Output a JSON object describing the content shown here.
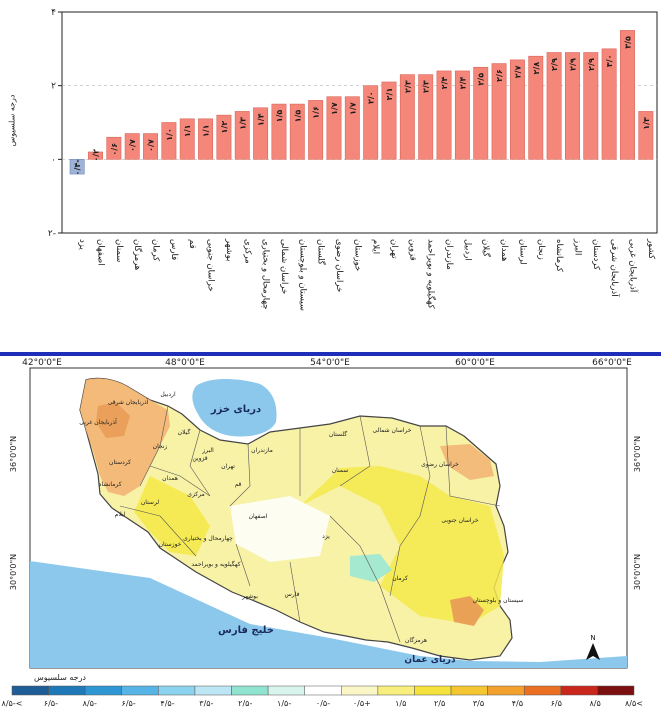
{
  "chart_data": {
    "type": "bar",
    "ylabel": "درجه سلسیوس",
    "ylim": [
      -2,
      4
    ],
    "yticks": [
      -2,
      0,
      2,
      4
    ],
    "ytick_labels": [
      "۲-",
      "۰",
      "۲",
      "۴"
    ],
    "categories": [
      "یزد",
      "اصفهان",
      "سمنان",
      "هرمزگان",
      "کرمان",
      "فارس",
      "قم",
      "خراسان جنوبی",
      "بوشهر",
      "مرکزی",
      "چهارمحال و بختیاری",
      "خراسان شمالی",
      "سیستان و بلوچستان",
      "گلستان",
      "خراسان رضوی",
      "خوزستان",
      "ایلام",
      "تهران",
      "قزوین",
      "کهگیلویه و بویراحمد",
      "مازندران",
      "اردبیل",
      "گیلان",
      "همدان",
      "لرستان",
      "زنجان",
      "کرمانشاه",
      "البرز",
      "کردستان",
      "آذربایجان شرقی",
      "آذربایجان غربی",
      "کشور"
    ],
    "values": [
      -0.4,
      0.2,
      0.6,
      0.7,
      0.7,
      1.0,
      1.1,
      1.1,
      1.2,
      1.3,
      1.4,
      1.5,
      1.5,
      1.6,
      1.7,
      1.7,
      2.0,
      2.1,
      2.3,
      2.3,
      2.4,
      2.4,
      2.5,
      2.6,
      2.7,
      2.8,
      2.9,
      2.9,
      2.9,
      3.0,
      3.5,
      1.3
    ],
    "value_labels": [
      "۰/۴-",
      "۰/۲",
      "۰/۶",
      "۰/۷",
      "۰/۷",
      "۱/۰",
      "۱/۱",
      "۱/۱",
      "۱/۲",
      "۱/۳",
      "۱/۴",
      "۱/۵",
      "۱/۵",
      "۱/۶",
      "۱/۷",
      "۱/۷",
      "۲/۰",
      "۲/۱",
      "۲/۳",
      "۲/۳",
      "۲/۴",
      "۲/۴",
      "۲/۵",
      "۲/۶",
      "۲/۷",
      "۲/۸",
      "۲/۹",
      "۲/۹",
      "۲/۹",
      "۳/۰",
      "۳/۵",
      "۱/۳"
    ],
    "colors": {
      "positive": "#f4877a",
      "negative": "#9fb3d6",
      "grid": "#b8b8b8"
    }
  },
  "map": {
    "longitude_labels": [
      "42°0'0\"E",
      "48°0'0\"E",
      "54°0'0\"E",
      "60°0'0\"E",
      "66°0'0\"E"
    ],
    "latitude_labels": [
      "36°0'0\"N",
      "30°0'0\"N"
    ],
    "water_labels": [
      "دریای خزر",
      "خلیج فارس",
      "دریای عمان"
    ],
    "province_labels": [
      "آذربایجان شرقی",
      "آذربایجان غربی",
      "اردبیل",
      "گیلان",
      "زنجان",
      "قزوین",
      "مازندران",
      "تهران",
      "گلستان",
      "خراسان شمالی",
      "خراسان رضوی",
      "سمنان",
      "قم",
      "کردستان",
      "همدان",
      "کرمانشاه",
      "مرکزی",
      "لرستان",
      "ایلام",
      "اصفهان",
      "یزد",
      "خراسان جنوبی",
      "چهارمحال و بختیاری",
      "خوزستان",
      "کهگیلویه و بویراحمد",
      "کرمان",
      "فارس",
      "بوشهر",
      "هرمزگان",
      "سیستان و بلوچستان",
      "البرز"
    ],
    "north_label": "N",
    "colors": {
      "sea": "#8cc8ec",
      "land_base": "#f8f2a6",
      "land_bright": "#f4e94a",
      "anomaly_warm": "#f2b676",
      "anomaly_hot": "#e89a55",
      "cool": "#ffffff",
      "cyan": "#9be8d6",
      "border": "#444444"
    }
  },
  "legend": {
    "title": "درجه سلسیوس",
    "labels": [
      "۸/۵-<",
      "۶/۵-",
      "۸/۵-",
      "۶/۵-",
      "۴/۵-",
      "۳/۵-",
      "۲/۵-",
      "۱/۵-",
      "۰/۵-",
      "۰/۵+",
      "۱/۵",
      "۲/۵",
      "۳/۵",
      "۴/۵",
      "۶/۵",
      "۸/۵",
      "۸/۵<"
    ],
    "colors": [
      "#1e5d95",
      "#1f79b8",
      "#2f96d4",
      "#56b5e6",
      "#8cd3ef",
      "#bde6f5",
      "#8fe3cf",
      "#d9f4ec",
      "#ffffff",
      "#fbf6c6",
      "#f8ee7d",
      "#f6e23c",
      "#f4c632",
      "#f2a12d",
      "#eb6f23",
      "#c9271d",
      "#7c0f0f"
    ]
  }
}
